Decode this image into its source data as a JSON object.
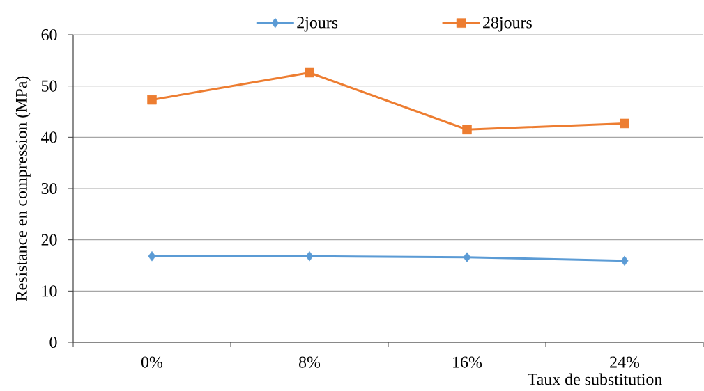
{
  "chart_data": {
    "type": "line",
    "categories": [
      "0%",
      "8%",
      "16%",
      "24%"
    ],
    "xlabel": "Taux de substitution",
    "ylabel": "Resistance en compression (MPa)",
    "series": [
      {
        "name": "2jours",
        "color": "#5b9bd5",
        "marker": "diamond",
        "values": [
          16.8,
          16.8,
          16.6,
          15.9
        ]
      },
      {
        "name": "28jours",
        "color": "#ed7d31",
        "marker": "square",
        "values": [
          47.3,
          52.6,
          41.5,
          42.7
        ]
      }
    ],
    "ylim": [
      0,
      60
    ],
    "yticks": [
      0,
      10,
      20,
      30,
      40,
      50,
      60
    ],
    "grid": "y",
    "legend": "top",
    "line_style": "solid"
  }
}
